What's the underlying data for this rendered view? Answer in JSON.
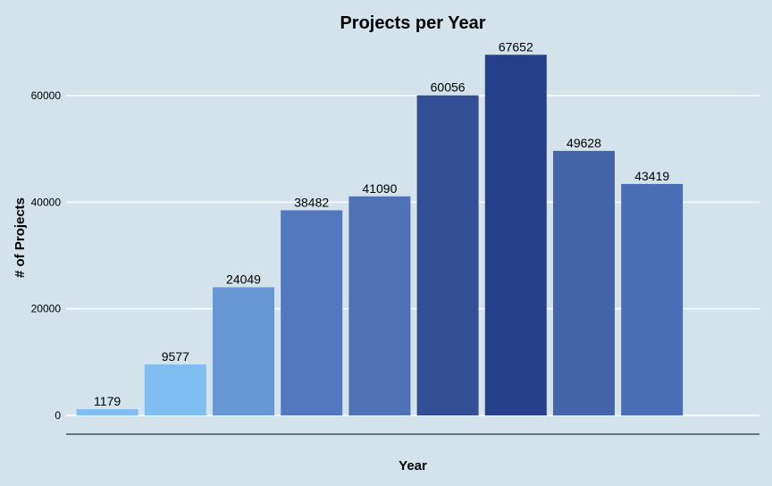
{
  "chart_data": {
    "type": "bar",
    "title": "Projects per Year",
    "xlabel": "Year",
    "ylabel": "# of Projects",
    "categories": [
      "",
      "",
      "",
      "",
      "",
      "",
      "",
      "",
      ""
    ],
    "values": [
      1179,
      9577,
      24049,
      38482,
      41090,
      60056,
      67652,
      49628,
      43419
    ],
    "bar_colors": [
      "#7fbdf0",
      "#7fbdf0",
      "#6798d4",
      "#5378bf",
      "#4e72b5",
      "#334f96",
      "#263f8a",
      "#4465ab",
      "#4a6eb6"
    ],
    "yticks": [
      0,
      20000,
      40000,
      60000
    ],
    "ylim": [
      0,
      70000
    ],
    "grid": true,
    "legend": "none",
    "background": "#d4e3eb",
    "gridline_color": "#ffffff"
  }
}
